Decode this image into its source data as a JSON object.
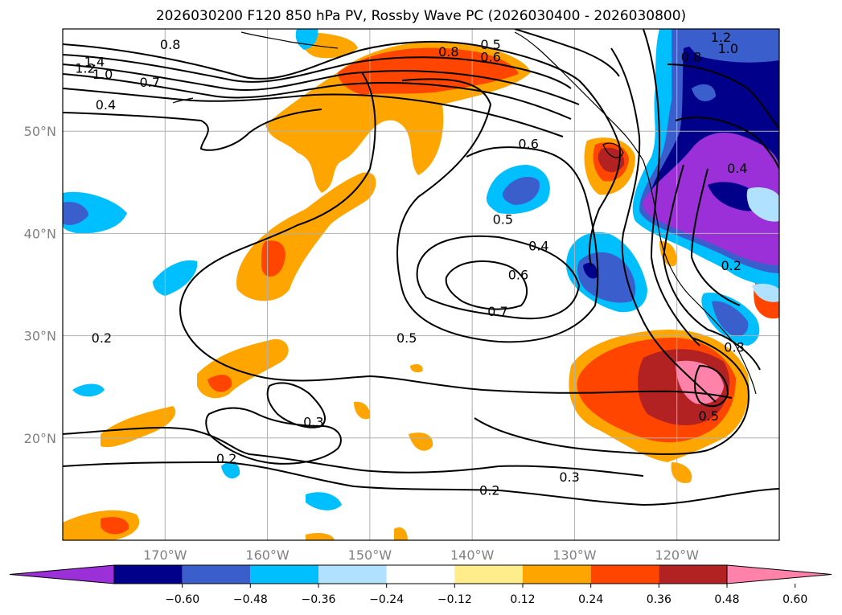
{
  "title": "2026030200 F120 850 hPa PV, Rossby Wave PC (2026030400 - 2026030800)",
  "map": {
    "lon_range": [
      -180,
      -110
    ],
    "lat_range": [
      10,
      60
    ],
    "lat_ticks": [
      {
        "value": 20,
        "label": "20°N"
      },
      {
        "value": 30,
        "label": "30°N"
      },
      {
        "value": 40,
        "label": "40°N"
      },
      {
        "value": 50,
        "label": "50°N"
      }
    ],
    "lon_ticks": [
      {
        "value": -170,
        "label": "170°W"
      },
      {
        "value": -160,
        "label": "160°W"
      },
      {
        "value": -150,
        "label": "150°W"
      },
      {
        "value": -140,
        "label": "140°W"
      },
      {
        "value": -130,
        "label": "130°W"
      },
      {
        "value": -120,
        "label": "120°W"
      }
    ],
    "contour_labels": [
      {
        "text": "1.4",
        "lon": -176.9,
        "lat": 56.8
      },
      {
        "text": "1.2",
        "lon": -177.8,
        "lat": 56.2
      },
      {
        "text": "1.0",
        "lon": -176.1,
        "lat": 55.6
      },
      {
        "text": "0.8",
        "lon": -169.5,
        "lat": 58.5
      },
      {
        "text": "0.7",
        "lon": -171.5,
        "lat": 54.8
      },
      {
        "text": "0.4",
        "lon": -175.8,
        "lat": 52.6
      },
      {
        "text": "0.8",
        "lon": -142.3,
        "lat": 57.8
      },
      {
        "text": "0.5",
        "lon": -138.2,
        "lat": 58.5
      },
      {
        "text": "0.6",
        "lon": -138.2,
        "lat": 57.3
      },
      {
        "text": "0.6",
        "lon": -134.5,
        "lat": 48.8
      },
      {
        "text": "0.5",
        "lon": -137.0,
        "lat": 41.4
      },
      {
        "text": "0.4",
        "lon": -133.5,
        "lat": 38.8
      },
      {
        "text": "0.6",
        "lon": -135.5,
        "lat": 36.0
      },
      {
        "text": "0.7",
        "lon": -137.5,
        "lat": 32.4
      },
      {
        "text": "0.5",
        "lon": -146.4,
        "lat": 29.8
      },
      {
        "text": "0.3",
        "lon": -155.5,
        "lat": 21.6
      },
      {
        "text": "0.2",
        "lon": -164.0,
        "lat": 18.0
      },
      {
        "text": "0.2",
        "lon": -138.3,
        "lat": 14.9
      },
      {
        "text": "0.3",
        "lon": -130.5,
        "lat": 16.2
      },
      {
        "text": "0.5",
        "lon": -116.9,
        "lat": 22.2
      },
      {
        "text": "0.2",
        "lon": -176.2,
        "lat": 29.8
      },
      {
        "text": "1.2",
        "lon": -115.7,
        "lat": 59.2
      },
      {
        "text": "1.0",
        "lon": -115.0,
        "lat": 58.1
      },
      {
        "text": "0.8",
        "lon": -118.6,
        "lat": 57.3
      },
      {
        "text": "0.4",
        "lon": -114.1,
        "lat": 46.4
      },
      {
        "text": "0.2",
        "lon": -114.7,
        "lat": 36.9
      },
      {
        "text": "0.8",
        "lon": -114.4,
        "lat": 28.9
      }
    ]
  },
  "colorbar": {
    "labels": [
      "−0.60",
      "−0.48",
      "−0.36",
      "−0.24",
      "−0.12",
      "0.12",
      "0.24",
      "0.36",
      "0.48",
      "0.60"
    ],
    "colors": [
      "#9b30d9",
      "#00008b",
      "#3a5fcd",
      "#00bfff",
      "#b0e2ff",
      "#ffffff",
      "#ffec8b",
      "#ffa500",
      "#ff4500",
      "#b22222",
      "#ff82ab"
    ]
  }
}
